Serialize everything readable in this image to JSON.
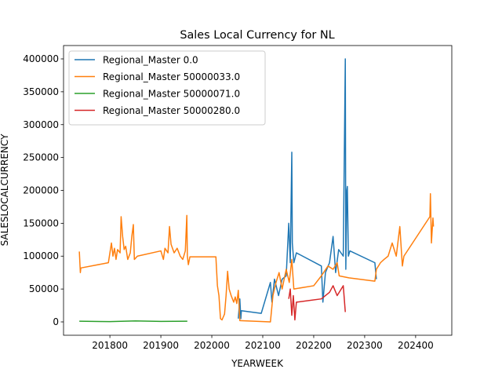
{
  "chart_data": {
    "type": "line",
    "title": "Sales Local Currency for NL",
    "xlabel": "YEARWEEK",
    "ylabel": "SALESLOCALCURRENCY",
    "xlim": [
      201709,
      202471
    ],
    "ylim": [
      -20300,
      420300
    ],
    "xticks": [
      201800,
      201900,
      202000,
      202100,
      202200,
      202300,
      202400
    ],
    "yticks": [
      0,
      50000,
      100000,
      150000,
      200000,
      250000,
      300000,
      350000,
      400000
    ],
    "legend": "upper left",
    "series": [
      {
        "name": "Regional_Master 0.0",
        "color": "#1f77b4",
        "x": [
          202052,
          202055,
          202057,
          202058,
          202097,
          202115,
          202118,
          202123,
          202131,
          202138,
          202146,
          202151,
          202154,
          202157,
          202158,
          202161,
          202166,
          202215,
          202218,
          202223,
          202231,
          202238,
          202243,
          202249,
          202258,
          202262,
          202263,
          202265,
          202266,
          202268,
          202271,
          202320,
          202323
        ],
        "values": [
          5000,
          35000,
          5000,
          17000,
          13000,
          60000,
          30000,
          65000,
          40000,
          65000,
          70000,
          150000,
          90000,
          258000,
          120000,
          90000,
          105000,
          85000,
          30000,
          75000,
          90000,
          130000,
          75000,
          110000,
          100000,
          400000,
          80000,
          200000,
          206000,
          100000,
          108000,
          90000,
          65000
        ]
      },
      {
        "name": "Regional_Master 50000033.0",
        "color": "#ff7f0e",
        "x": [
          201740,
          201742,
          201743,
          201797,
          201803,
          201806,
          201809,
          201812,
          201815,
          201820,
          201822,
          201825,
          201828,
          201831,
          201835,
          201840,
          201843,
          201846,
          201848,
          201854,
          201900,
          201905,
          201908,
          201914,
          201917,
          201920,
          201926,
          201932,
          201938,
          201943,
          201948,
          201951,
          201952,
          201954,
          201957,
          202008,
          202011,
          202014,
          202017,
          202020,
          202025,
          202028,
          202031,
          202034,
          202038,
          202043,
          202046,
          202049,
          202052,
          202055,
          202115,
          202120,
          202126,
          202132,
          202138,
          202146,
          202152,
          202157,
          202161,
          202200,
          202215,
          202228,
          202238,
          202246,
          202250,
          202269,
          202320,
          202323,
          202331,
          202338,
          202346,
          202354,
          202362,
          202369,
          202374,
          202377,
          202428,
          202429,
          202431,
          202434,
          202435
        ],
        "values": [
          107000,
          75000,
          82000,
          90000,
          120000,
          100000,
          112000,
          95000,
          110000,
          105000,
          160000,
          130000,
          110000,
          115000,
          95000,
          105000,
          130000,
          148000,
          95000,
          100000,
          108000,
          95000,
          112000,
          105000,
          145000,
          118000,
          105000,
          112000,
          100000,
          95000,
          108000,
          162000,
          100000,
          87000,
          99000,
          99000,
          55000,
          40000,
          5000,
          3000,
          12000,
          40000,
          77000,
          50000,
          40000,
          30000,
          38000,
          28000,
          48000,
          2000,
          0,
          40000,
          60000,
          75000,
          50000,
          80000,
          60000,
          95000,
          50000,
          55000,
          70000,
          85000,
          80000,
          90000,
          70000,
          67000,
          62000,
          80000,
          90000,
          95000,
          100000,
          120000,
          100000,
          145000,
          85000,
          100000,
          160000,
          195000,
          120000,
          158000,
          145000
        ]
      },
      {
        "name": "Regional_Master 50000071.0",
        "color": "#2ca02c",
        "x": [
          201740,
          201800,
          201850,
          201900,
          201952
        ],
        "values": [
          1000,
          500,
          1500,
          800,
          1000
        ]
      },
      {
        "name": "Regional_Master 50000280.0",
        "color": "#d62728",
        "x": [
          202151,
          202154,
          202157,
          202160,
          202163,
          202166,
          202215,
          202231,
          202238,
          202246,
          202254,
          202258,
          202262
        ],
        "values": [
          35000,
          50000,
          10000,
          40000,
          3000,
          30000,
          35000,
          45000,
          55000,
          40000,
          50000,
          55000,
          15000
        ]
      }
    ]
  }
}
